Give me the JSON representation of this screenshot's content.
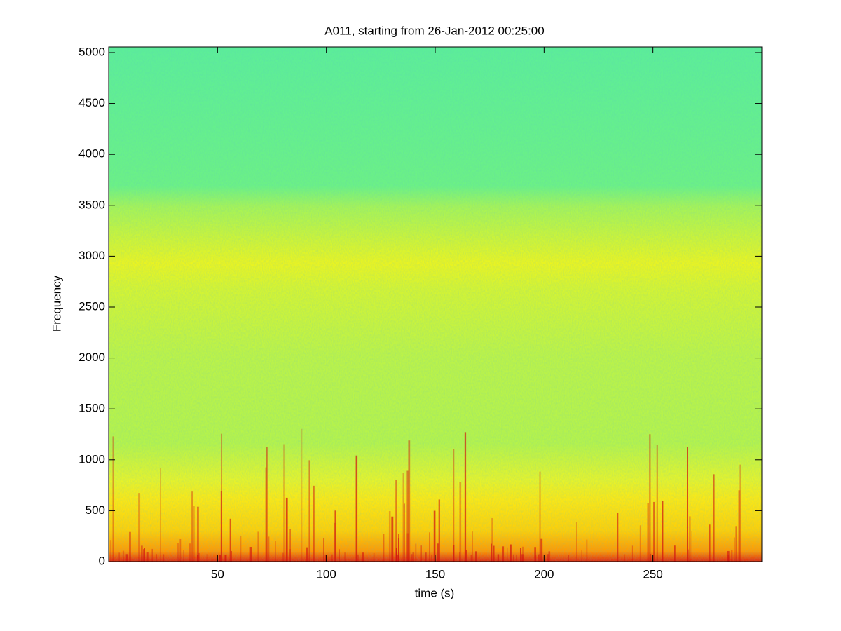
{
  "chart_data": {
    "type": "spectrogram",
    "title": "A011, starting from 26-Jan-2012 00:25:00",
    "x_label": "time (s)",
    "y_label": "Frequency",
    "xlim": [
      0,
      300
    ],
    "xticks": [
      50,
      100,
      150,
      200,
      250
    ],
    "ylim": [
      0,
      5055
    ],
    "yticks": [
      0,
      500,
      1000,
      1500,
      2000,
      2500,
      3000,
      3500,
      4000,
      4500,
      5000
    ],
    "grid": false
  }
}
